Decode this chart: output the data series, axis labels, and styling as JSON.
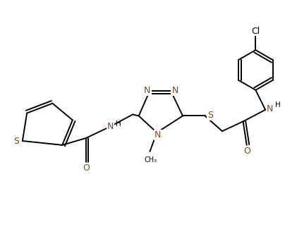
{
  "background_color": "#ffffff",
  "line_color": "#000000",
  "heteroatom_color": "#8B4513",
  "title": "",
  "figsize": [
    4.21,
    3.25
  ],
  "dpi": 100,
  "bond_lw": 1.4,
  "font_size": 8.5,
  "font_size_small": 7.0,
  "xlim": [
    0,
    10.5
  ],
  "ylim": [
    0,
    8.1
  ]
}
